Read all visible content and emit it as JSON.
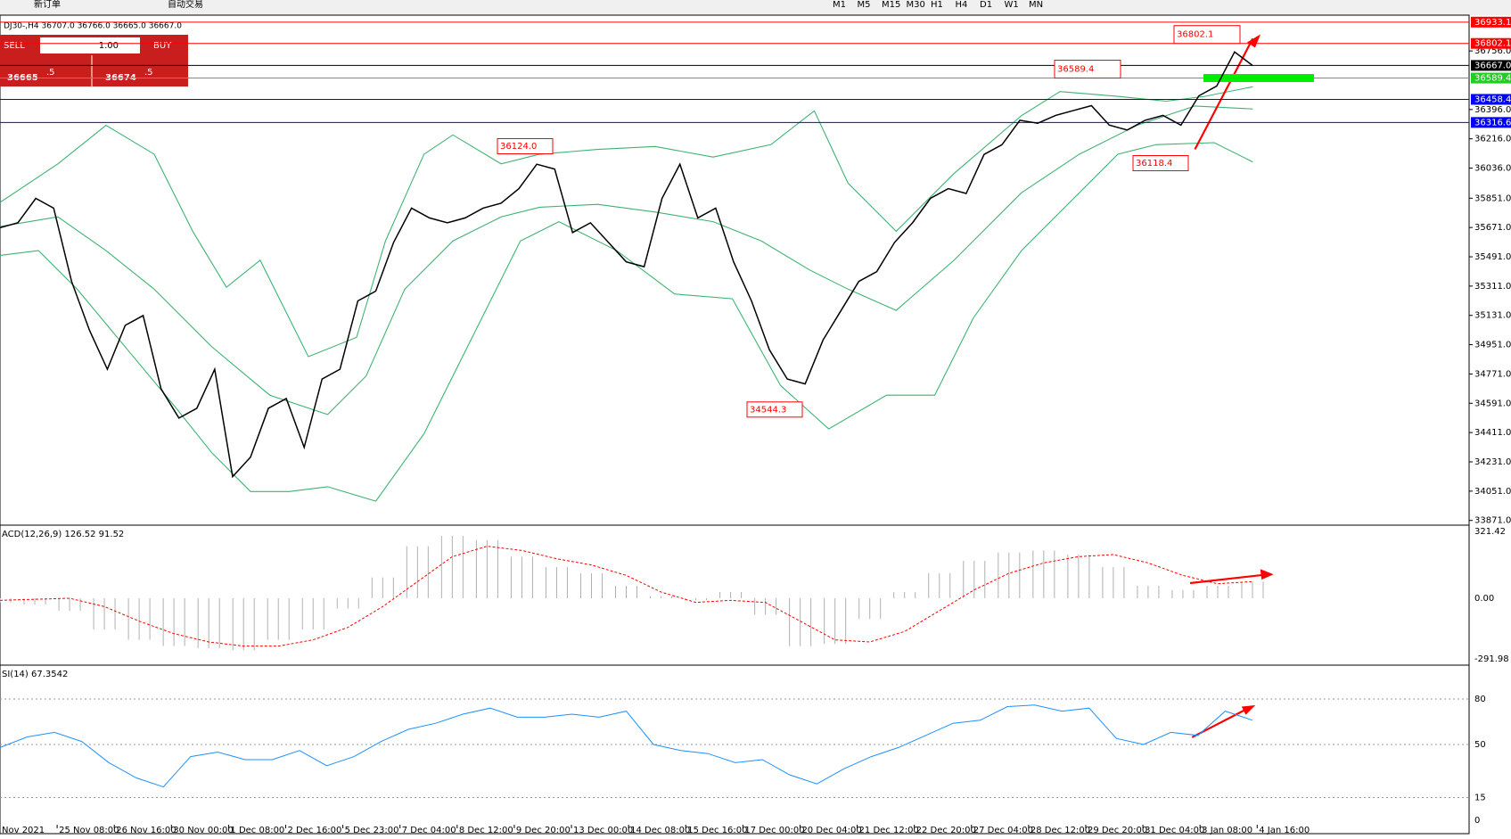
{
  "toolbar": {
    "new_order": "新订单",
    "auto_trading": "自动交易",
    "timeframes": [
      "M1",
      "M5",
      "M15",
      "M30",
      "H1",
      "H4",
      "D1",
      "W1",
      "MN"
    ]
  },
  "chart_header": "DJ30-,H4  36707.0 36766.0 36665.0 36667.0",
  "trade_panel": {
    "sell": "SELL",
    "lots": "1.00",
    "buy": "BUY",
    "bid_main": "36665",
    "bid_frac": ".5",
    "ask_main": "36674",
    "ask_frac": ".5"
  },
  "price_axis": [
    {
      "value": 36756.0,
      "label": "36756.0"
    },
    {
      "value": 36396.0,
      "label": "36396.0"
    },
    {
      "value": 36216.0,
      "label": "36216.0"
    },
    {
      "value": 36036.0,
      "label": "36036.0"
    },
    {
      "value": 35851.0,
      "label": "35851.0"
    },
    {
      "value": 35671.0,
      "label": "35671.0"
    },
    {
      "value": 35491.0,
      "label": "35491.0"
    },
    {
      "value": 35311.0,
      "label": "35311.0"
    },
    {
      "value": 35131.0,
      "label": "35131.0"
    },
    {
      "value": 34951.0,
      "label": "34951.0"
    },
    {
      "value": 34771.0,
      "label": "34771.0"
    },
    {
      "value": 34591.0,
      "label": "34591.0"
    },
    {
      "value": 34411.0,
      "label": "34411.0"
    },
    {
      "value": 34231.0,
      "label": "34231.0"
    },
    {
      "value": 34051.0,
      "label": "34051.0"
    },
    {
      "value": 33871.0,
      "label": "33871.0"
    }
  ],
  "price_levels": [
    {
      "value": 36933.1,
      "label": "36933.1",
      "color": "#ff0000"
    },
    {
      "value": 36802.1,
      "label": "36802.1",
      "color": "#ff0000"
    },
    {
      "value": 36667.0,
      "label": "36667.0",
      "color": "#000000"
    },
    {
      "value": 36589.4,
      "label": "36589.4",
      "color": "#22cc22"
    },
    {
      "value": 36458.4,
      "label": "36458.4",
      "color": "#0000ff"
    },
    {
      "value": 36316.6,
      "label": "36316.6",
      "color": "#0000ff"
    }
  ],
  "annotations": [
    {
      "value": 36124.0,
      "label": "36124.0"
    },
    {
      "value": 36589.4,
      "label": "36589.4"
    },
    {
      "value": 36802.1,
      "label": "36802.1"
    },
    {
      "value": 36118.4,
      "label": "36118.4"
    },
    {
      "value": 34544.3,
      "label": "34544.3"
    }
  ],
  "closes": [
    35670,
    35700,
    35850,
    35790,
    35340,
    35040,
    34800,
    35070,
    35130,
    34680,
    34500,
    34560,
    34800,
    34140,
    34260,
    34560,
    34620,
    34320,
    34740,
    34800,
    35220,
    35280,
    35580,
    35790,
    35730,
    35700,
    35730,
    35790,
    35820,
    35910,
    36060,
    36030,
    35640,
    35700,
    35580,
    35460,
    35430,
    35850,
    36060,
    35730,
    35790,
    35460,
    35220,
    34920,
    34740,
    34710,
    34980,
    35160,
    35340,
    35400,
    35580,
    35700,
    35850,
    35910,
    35880,
    36120,
    36180,
    36330,
    36312,
    36360,
    36390,
    36420,
    36300,
    36270,
    36330,
    36360,
    36300,
    36480,
    36540,
    36750,
    36667
  ],
  "macd": {
    "label": "ACD(12,26,9) 126.52 91.52",
    "ticks": [
      {
        "value": 321.42,
        "label": "321.42"
      },
      {
        "value": 0,
        "label": "0.00"
      },
      {
        "value": -291.98,
        "label": "-291.98"
      }
    ],
    "histogram": [
      -20,
      -30,
      -60,
      -150,
      -200,
      -230,
      -240,
      -250,
      -200,
      -150,
      -50,
      100,
      250,
      300,
      280,
      200,
      150,
      120,
      60,
      10,
      -10,
      30,
      -80,
      -230,
      -220,
      -100,
      30,
      120,
      180,
      220,
      230,
      210,
      150,
      60,
      40,
      60,
      80
    ],
    "signal": [
      -10,
      -5,
      0,
      -40,
      -110,
      -170,
      -210,
      -230,
      -230,
      -200,
      -140,
      -40,
      80,
      200,
      250,
      230,
      190,
      160,
      110,
      30,
      -20,
      -10,
      -20,
      -110,
      -200,
      -210,
      -160,
      -60,
      40,
      120,
      170,
      200,
      210,
      170,
      110,
      70,
      80
    ]
  },
  "rsi": {
    "label": "SI(14) 67.3542",
    "ticks": [
      80,
      50,
      15,
      0
    ],
    "values": [
      48,
      55,
      58,
      52,
      38,
      28,
      22,
      42,
      45,
      40,
      40,
      46,
      36,
      42,
      52,
      60,
      64,
      70,
      74,
      68,
      68,
      70,
      68,
      72,
      50,
      46,
      44,
      38,
      40,
      30,
      24,
      34,
      42,
      48,
      56,
      64,
      66,
      75,
      76,
      72,
      74,
      54,
      50,
      58,
      56,
      72,
      66
    ]
  },
  "time_axis": [
    "Nov 2021",
    "25 Nov 08:00",
    "26 Nov 16:00",
    "30 Nov 00:00",
    "1 Dec 08:00",
    "2 Dec 16:00",
    "5 Dec 23:00",
    "7 Dec 04:00",
    "8 Dec 12:00",
    "9 Dec 20:00",
    "13 Dec 00:00",
    "14 Dec 08:00",
    "15 Dec 16:00",
    "17 Dec 00:00",
    "20 Dec 04:00",
    "21 Dec 12:00",
    "22 Dec 20:00",
    "27 Dec 04:00",
    "28 Dec 12:00",
    "29 Dec 20:00",
    "31 Dec 04:00",
    "3 Jan 08:00",
    "4 Jan 16:00"
  ]
}
